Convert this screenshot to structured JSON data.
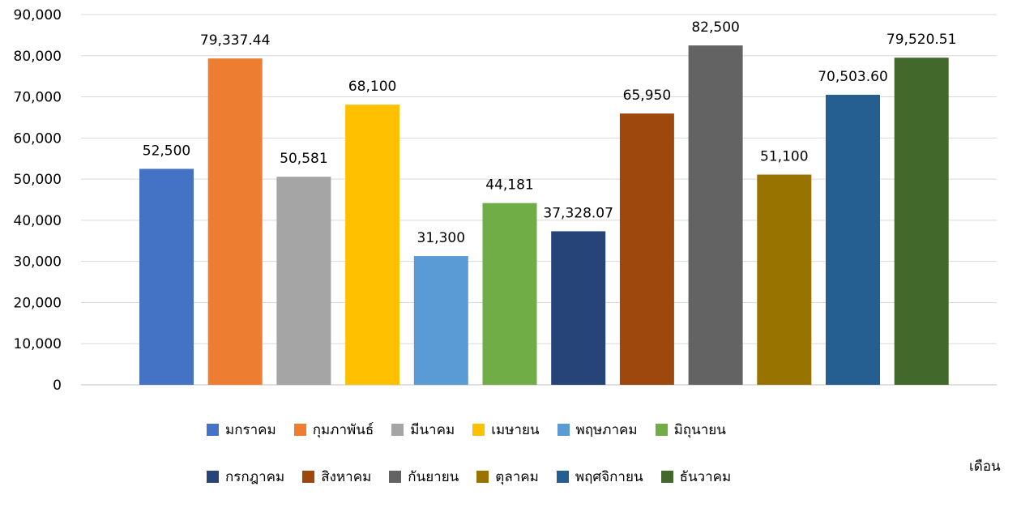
{
  "chart_data": {
    "type": "bar",
    "categories": [
      "มกราคม",
      "กุมภาพันธ์",
      "มีนาคม",
      "เมษายน",
      "พฤษภาคม",
      "มิถุนายน",
      "กรกฎาคม",
      "สิงหาคม",
      "กันยายน",
      "ตุลาคม",
      "พฤศจิกายน",
      "ธันวาคม"
    ],
    "values": [
      52500,
      79337.44,
      50581,
      68100,
      31300,
      44181,
      37328.07,
      65950,
      82500,
      51100,
      70503.6,
      79520.51
    ],
    "data_labels": [
      "52,500",
      "79,337.44",
      "50,581",
      "68,100",
      "31,300",
      "44,181",
      "37,328.07",
      "65,950",
      "82,500",
      "51,100",
      "70,503.60",
      "79,520.51"
    ],
    "colors": [
      "#4472C4",
      "#ED7D31",
      "#A5A5A5",
      "#FFC000",
      "#5B9BD5",
      "#70AD47",
      "#264478",
      "#9E480E",
      "#636363",
      "#997300",
      "#255E91",
      "#43682B"
    ],
    "ylim": [
      0,
      90000
    ],
    "yticks": [
      "0",
      "10,000",
      "20,000",
      "30,000",
      "40,000",
      "50,000",
      "60,000",
      "70,000",
      "80,000",
      "90,000"
    ],
    "xlabel": "เดือน",
    "ylabel": "",
    "title": "",
    "grid": true,
    "legend_position": "bottom"
  }
}
